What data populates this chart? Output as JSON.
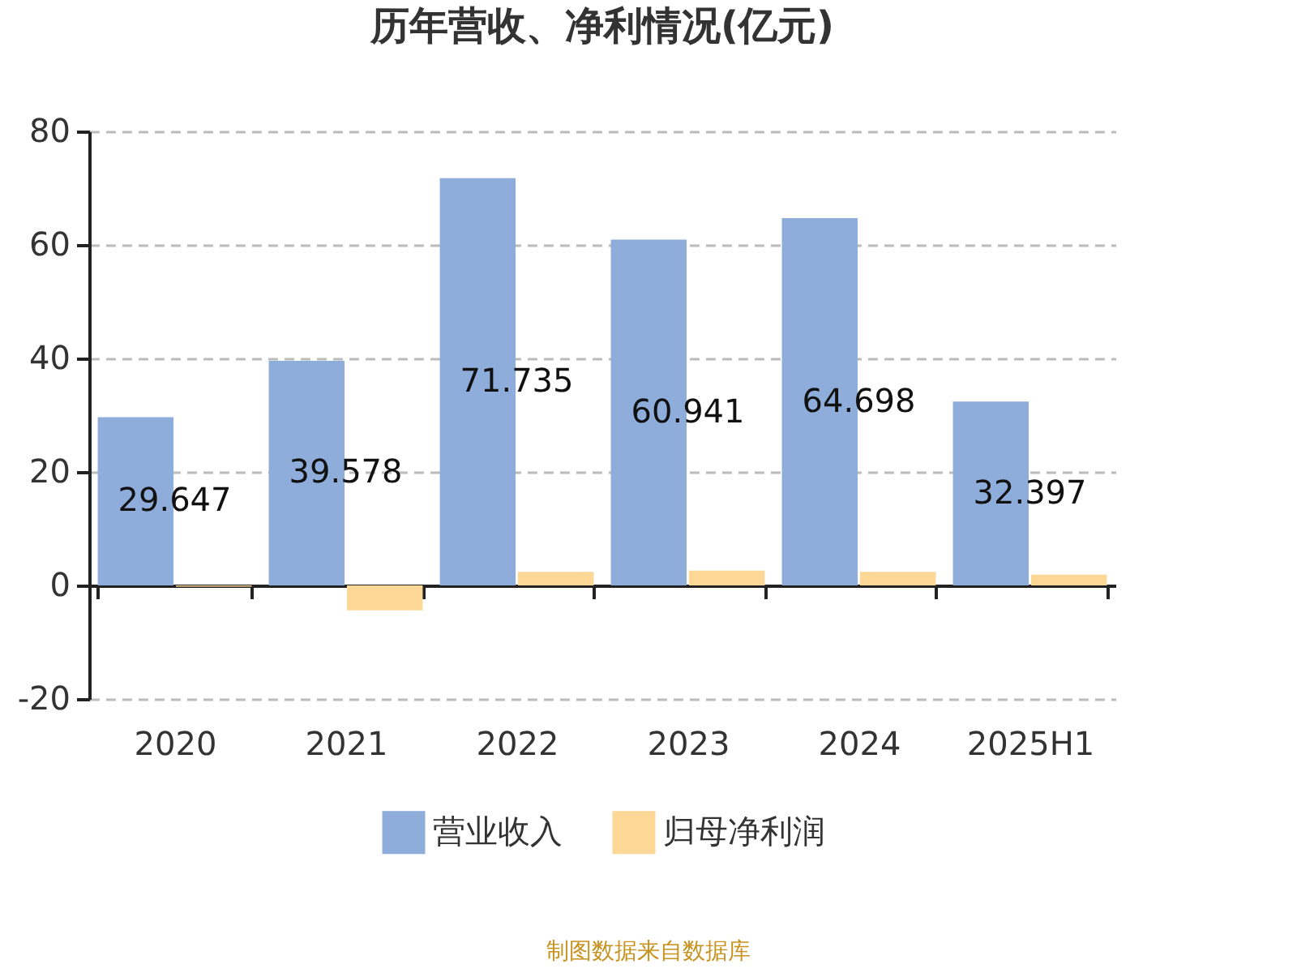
{
  "chart_data": {
    "type": "bar",
    "title": "历年营收、净利情况(亿元)",
    "categories": [
      "2020",
      "2021",
      "2022",
      "2023",
      "2024",
      "2025H1"
    ],
    "series": [
      {
        "name": "营业收入",
        "color": "#8eaddb",
        "values": [
          29.647,
          39.578,
          71.735,
          60.941,
          64.698,
          32.397
        ],
        "value_labels": [
          "29.647",
          "39.578",
          "71.735",
          "60.941",
          "64.698",
          "32.397"
        ]
      },
      {
        "name": "归母净利润",
        "color": "#fdd796",
        "values": [
          -0.2,
          -4.4,
          2.4,
          2.6,
          2.4,
          1.9
        ]
      }
    ],
    "ylim": [
      -20,
      80
    ],
    "yticks": [
      -20,
      0,
      20,
      40,
      60,
      80
    ],
    "grid": "y",
    "legend": "bottom",
    "annotations": [
      "制图数据来自数据库"
    ]
  }
}
